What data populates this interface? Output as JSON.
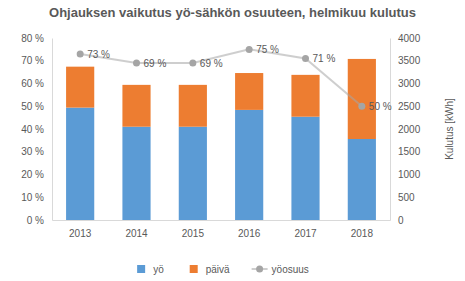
{
  "chart_data": {
    "type": "bar",
    "title": "Ohjauksen vaikutus yö-sähkön osuuteen, helmikuu kulutus",
    "y2_label": "Kulutus [kWh]",
    "categories": [
      "2013",
      "2014",
      "2015",
      "2016",
      "2017",
      "2018"
    ],
    "stacked": true,
    "grid": false,
    "legend": "bottom",
    "series": [
      {
        "name": "yö",
        "type": "bar",
        "axis": "y2",
        "color": "#5b9bd5",
        "values": [
          2470,
          2050,
          2050,
          2420,
          2270,
          1780
        ]
      },
      {
        "name": "päivä",
        "type": "bar",
        "axis": "y2",
        "color": "#ed7d31",
        "values": [
          900,
          920,
          920,
          810,
          920,
          1760
        ]
      },
      {
        "name": "yöosuus",
        "type": "line",
        "color": "#a5a5a5",
        "marker": "circle",
        "line_style": "solid",
        "data_labels": true,
        "values": [
          73,
          69,
          69,
          75,
          71,
          50
        ],
        "value_labels": [
          "73 %",
          "69 %",
          "69 %",
          "75 %",
          "71 %",
          "50 %"
        ]
      }
    ],
    "ylim": [
      0,
      80
    ],
    "yticks": [
      {
        "value": 0,
        "label": "0 %"
      },
      {
        "value": 10,
        "label": "10 %"
      },
      {
        "value": 20,
        "label": "20 %"
      },
      {
        "value": 30,
        "label": "30 %"
      },
      {
        "value": 40,
        "label": "40 %"
      },
      {
        "value": 50,
        "label": "50 %"
      },
      {
        "value": 60,
        "label": "60 %"
      },
      {
        "value": 70,
        "label": "70 %"
      },
      {
        "value": 80,
        "label": "80 %"
      }
    ],
    "y2lim": [
      0,
      4000
    ],
    "y2ticks": [
      0,
      500,
      1000,
      1500,
      2000,
      2500,
      3000,
      3500,
      4000
    ]
  }
}
